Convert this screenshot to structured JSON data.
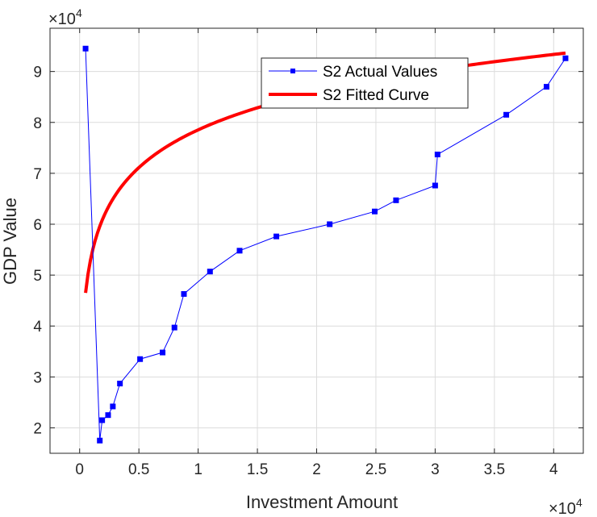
{
  "chart_data": {
    "type": "line",
    "xlabel": "Investment Amount",
    "ylabel": "GDP Value",
    "x_exponent_label": "×10",
    "x_exponent_power": "4",
    "y_exponent_label": "×10",
    "y_exponent_power": "4",
    "xlim": [
      -2500,
      42500
    ],
    "ylim": [
      15000,
      98500
    ],
    "xticks": [
      0,
      5000,
      10000,
      15000,
      20000,
      25000,
      30000,
      35000,
      40000
    ],
    "xtick_labels": [
      "0",
      "0.5",
      "1",
      "1.5",
      "2",
      "2.5",
      "3",
      "3.5",
      "4"
    ],
    "yticks": [
      20000,
      30000,
      40000,
      50000,
      60000,
      70000,
      80000,
      90000
    ],
    "ytick_labels": [
      "2",
      "3",
      "4",
      "5",
      "6",
      "7",
      "8",
      "9"
    ],
    "grid": true,
    "legend_position": "top-right",
    "series": [
      {
        "name": "S2 Actual Values",
        "style": "line-square-markers",
        "color": "#0000ff",
        "x": [
          500,
          1700,
          1900,
          2400,
          2800,
          3400,
          5100,
          7000,
          8000,
          8800,
          11000,
          13500,
          16600,
          21100,
          24900,
          26700,
          30000,
          30200,
          36000,
          39400,
          41000
        ],
        "y": [
          94500,
          17500,
          21500,
          22500,
          24200,
          28700,
          33500,
          34800,
          39700,
          46300,
          50700,
          54800,
          57600,
          60000,
          62500,
          64700,
          67600,
          73700,
          81500,
          87000,
          92600
        ]
      },
      {
        "name": "S2 Fitted Curve",
        "style": "line",
        "color": "#ff0000",
        "model": "log",
        "x_range": [
          500,
          41000
        ],
        "a": -19925,
        "b": 10690
      }
    ]
  }
}
